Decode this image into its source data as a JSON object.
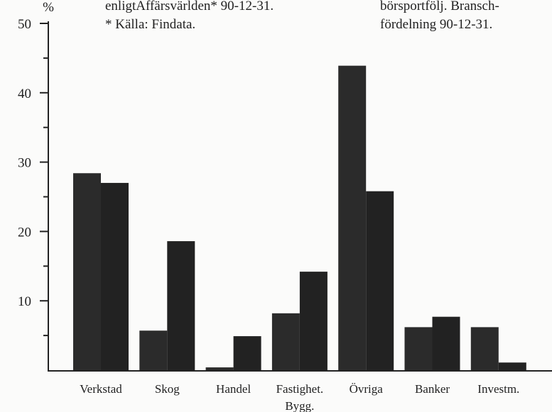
{
  "chart_data": {
    "type": "bar",
    "y_label": "%",
    "annotations": [
      "enligtAffärsvärlden* 90-12-31.",
      "* Källa: Findata.",
      "börsportfölj. Bransch-",
      "fördelning 90-12-31."
    ],
    "categories": [
      "Verkstad",
      "Skog",
      "Handel",
      "Fastighet.\nBygg.",
      "Övriga",
      "Banker",
      "Investm."
    ],
    "series": [
      {
        "color": "#2b2b2b",
        "values": [
          28.4,
          5.7,
          0.4,
          8.2,
          43.9,
          6.2,
          6.2
        ]
      },
      {
        "color": "#222222",
        "values": [
          27.0,
          18.6,
          4.9,
          14.2,
          25.8,
          7.7,
          1.1
        ]
      }
    ],
    "ylim": [
      0,
      50
    ],
    "yticks": [
      10,
      20,
      30,
      40,
      50
    ],
    "minor_yticks": [
      5,
      15,
      25,
      35,
      45
    ],
    "grid": false
  }
}
